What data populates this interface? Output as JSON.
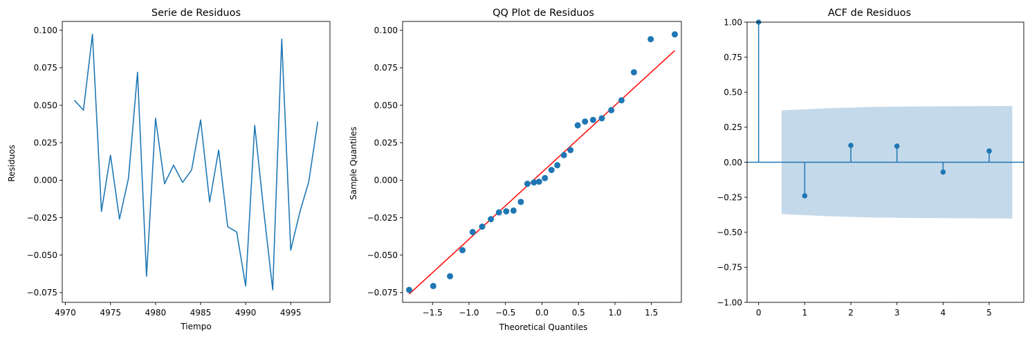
{
  "chart_data": [
    {
      "type": "line",
      "title": "Serie de Residuos",
      "xlabel": "Tiempo",
      "ylabel": "Residuos",
      "xlim": [
        4969.65,
        4999.35
      ],
      "ylim": [
        -0.0815,
        0.1059
      ],
      "xticks": [
        4970,
        4975,
        4980,
        4985,
        4990,
        4995
      ],
      "yticks": [
        -0.075,
        -0.05,
        -0.025,
        0.0,
        0.025,
        0.05,
        0.075,
        0.1
      ],
      "ytick_labels": [
        "−0.075",
        "−0.050",
        "−0.025",
        "0.000",
        "0.025",
        "0.050",
        "0.075",
        "0.100"
      ],
      "line_color": "#1f77b4",
      "x": [
        4971,
        4972,
        4973,
        4974,
        4975,
        4976,
        4977,
        4978,
        4979,
        4980,
        4981,
        4982,
        4983,
        4984,
        4985,
        4986,
        4987,
        4988,
        4989,
        4990,
        4991,
        4992,
        4993,
        4994,
        4995,
        4996,
        4997,
        4998
      ],
      "y": [
        0.0533,
        0.0467,
        0.0973,
        -0.0208,
        0.0167,
        -0.026,
        0.0014,
        0.072,
        -0.0641,
        0.0413,
        -0.0024,
        0.01,
        -0.0015,
        0.0068,
        0.0402,
        -0.0145,
        0.0201,
        -0.031,
        -0.0346,
        -0.0706,
        0.0366,
        -0.0203,
        -0.0732,
        0.0941,
        -0.0467,
        -0.0215,
        -0.001,
        0.0391
      ]
    },
    {
      "type": "scatter",
      "title": "QQ Plot de Residuos",
      "xlabel": "Theoretical Quantiles",
      "ylabel": "Sample Quantiles",
      "xlim": [
        -1.91,
        1.91
      ],
      "ylim": [
        -0.0815,
        0.1059
      ],
      "xticks": [
        -1.5,
        -1.0,
        -0.5,
        0.0,
        0.5,
        1.0,
        1.5
      ],
      "xtick_labels": [
        "−1.5",
        "−1.0",
        "−0.5",
        "0.0",
        "0.5",
        "1.0",
        "1.5"
      ],
      "yticks": [
        -0.075,
        -0.05,
        -0.025,
        0.0,
        0.025,
        0.05,
        0.075,
        0.1
      ],
      "ytick_labels": [
        "−0.075",
        "−0.050",
        "−0.025",
        "0.000",
        "0.025",
        "0.050",
        "0.075",
        "0.100"
      ],
      "point_color": "#1f77b4",
      "line_color": "#ff0000",
      "reference_line": {
        "x": [
          -1.82,
          1.82
        ],
        "y": [
          -0.076,
          0.0865
        ]
      },
      "x": [
        -1.82,
        -1.49,
        -1.26,
        -1.09,
        -0.95,
        -0.82,
        -0.7,
        -0.59,
        -0.49,
        -0.39,
        -0.29,
        -0.2,
        -0.11,
        -0.04,
        0.04,
        0.13,
        0.21,
        0.3,
        0.39,
        0.49,
        0.59,
        0.7,
        0.82,
        0.95,
        1.09,
        1.26,
        1.49,
        1.82
      ],
      "y": [
        -0.0732,
        -0.0706,
        -0.0641,
        -0.0467,
        -0.0346,
        -0.031,
        -0.026,
        -0.0215,
        -0.0208,
        -0.0203,
        -0.0145,
        -0.0024,
        -0.0015,
        -0.001,
        0.0014,
        0.0068,
        0.01,
        0.0167,
        0.0201,
        0.0366,
        0.0391,
        0.0402,
        0.0413,
        0.0467,
        0.0533,
        0.072,
        0.0941,
        0.0973
      ]
    },
    {
      "type": "stem",
      "title": "ACF de Residuos",
      "xlim": [
        -0.25,
        5.75
      ],
      "ylim": [
        -1.0,
        1.0
      ],
      "xticks": [
        0,
        1,
        2,
        3,
        4,
        5
      ],
      "yticks": [
        -1.0,
        -0.75,
        -0.5,
        -0.25,
        0.0,
        0.25,
        0.5,
        0.75,
        1.0
      ],
      "ytick_labels": [
        "−1.00",
        "−0.75",
        "−0.50",
        "−0.25",
        "0.00",
        "0.25",
        "0.50",
        "0.75",
        "1.00"
      ],
      "stem_color": "#1f77b4",
      "band_color": "#c4d9ea",
      "lags": [
        0,
        1,
        2,
        3,
        4,
        5
      ],
      "values": [
        1.0,
        -0.24,
        0.12,
        0.115,
        -0.07,
        0.08
      ],
      "confidence_band": {
        "x": [
          0.5,
          1.5,
          2.5,
          3.5,
          4.5,
          5.5
        ],
        "upper": [
          0.37,
          0.385,
          0.395,
          0.398,
          0.4,
          0.402
        ]
      }
    }
  ]
}
